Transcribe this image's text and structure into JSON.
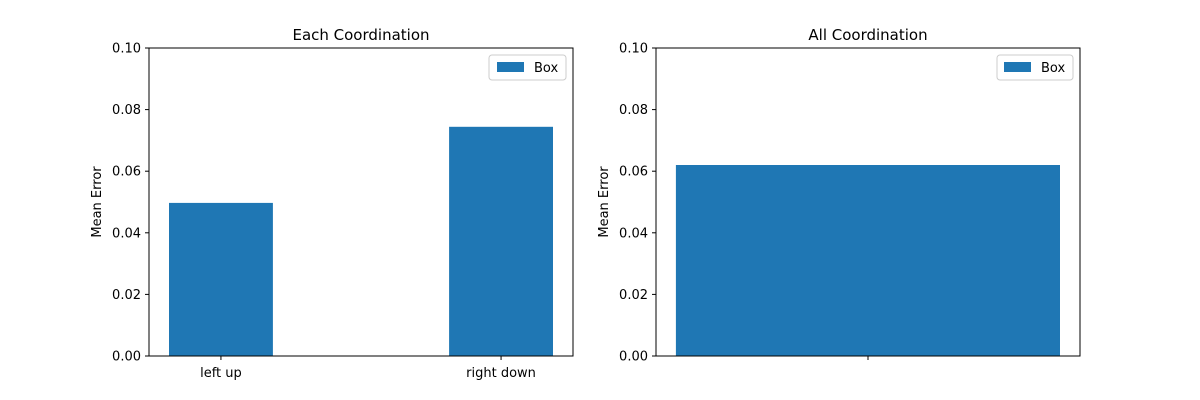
{
  "chart_data": [
    {
      "type": "bar",
      "title": "Each Coordination",
      "xlabel": "",
      "ylabel": "Mean Error",
      "categories": [
        "left up",
        "right down"
      ],
      "series": [
        {
          "name": "Box",
          "values": [
            0.0497,
            0.0744
          ],
          "color": "#1f77b4"
        }
      ],
      "ylim": [
        0,
        0.1
      ],
      "yticks": [
        "0.00",
        "0.02",
        "0.04",
        "0.06",
        "0.08",
        "0.10"
      ],
      "legend": "top-right",
      "grid": false
    },
    {
      "type": "bar",
      "title": "All Coordination",
      "xlabel": "",
      "ylabel": "Mean Error",
      "categories": [
        ""
      ],
      "series": [
        {
          "name": "Box",
          "values": [
            0.062
          ],
          "color": "#1f77b4"
        }
      ],
      "ylim": [
        0,
        0.1
      ],
      "yticks": [
        "0.00",
        "0.02",
        "0.04",
        "0.06",
        "0.08",
        "0.10"
      ],
      "legend": "top-right",
      "grid": false
    }
  ]
}
